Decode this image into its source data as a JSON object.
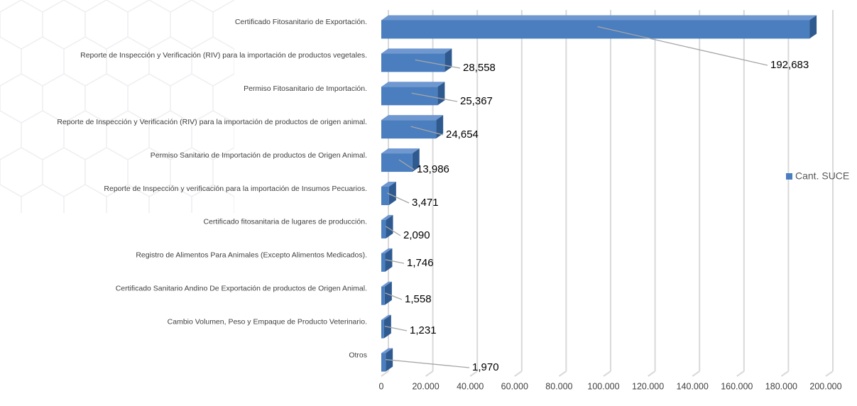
{
  "chart_data": {
    "type": "bar3d_horizontal",
    "categories": [
      "Certificado Fitosanitario de Exportación.",
      "Reporte de Inspección y Verificación (RIV) para la importación de productos vegetales.",
      "Permiso Fitosanitario de Importación.",
      "Reporte de Inspección y Verificación (RIV) para la importación de productos de origen animal.",
      "Permiso Sanitario de Importación de productos de Origen Animal.",
      "Reporte de Inspección y verificación para la importación de Insumos Pecuarios.",
      "Certificado fitosanitaria de lugares de producción.",
      "Registro de Alimentos Para Animales  (Excepto Alimentos Medicados).",
      "Certificado Sanitario Andino De Exportación de productos de Origen Animal.",
      "Cambio Volumen, Peso y  Empaque de Producto Veterinario.",
      "Otros"
    ],
    "series": [
      {
        "name": "Cant. SUCE",
        "color": "#4a7ebf",
        "values": [
          192683,
          28558,
          25367,
          24654,
          13986,
          3471,
          2090,
          1746,
          1558,
          1231,
          1970
        ],
        "value_labels": [
          "192,683",
          "28,558",
          "25,367",
          "24,654",
          "13,986",
          "3,471",
          "2,090",
          "1,746",
          "1,558",
          "1,231",
          "1,970"
        ]
      }
    ],
    "xlim": [
      0,
      200000
    ],
    "xticks": [
      0,
      {
        "value": 20000,
        "label": "20.000"
      },
      {
        "value": 40000,
        "label": "40.000"
      },
      {
        "value": 60000,
        "label": "60.000"
      },
      {
        "value": 80000,
        "label": "80.000"
      },
      {
        "value": 100000,
        "label": "100.000"
      },
      {
        "value": 120000,
        "label": "120.000"
      },
      {
        "value": 140000,
        "label": "140.000"
      },
      {
        "value": 160000,
        "label": "160.000"
      },
      {
        "value": 180000,
        "label": "180.000"
      },
      {
        "value": 200000,
        "label": "200.000"
      }
    ],
    "grid": true,
    "legend": "right"
  }
}
